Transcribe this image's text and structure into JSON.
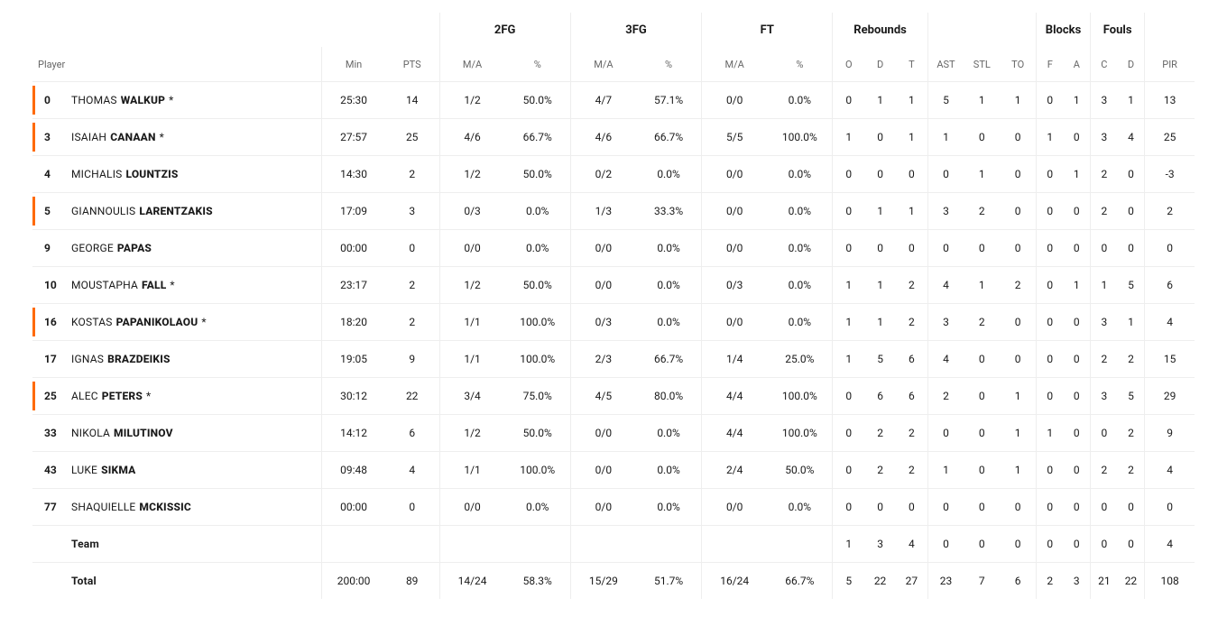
{
  "style": {
    "marker_color": "#ff6a00",
    "divider_color": "#eeeeee",
    "text_color": "#1a1a1a",
    "muted_color": "#666666",
    "background_color": "#ffffff",
    "font_family": "-apple-system, Segoe UI, Roboto, Helvetica Neue, Arial, sans-serif",
    "header_fontsize_pt": 10,
    "group_header_fontsize_pt": 10,
    "body_fontsize_pt": 9
  },
  "groups": {
    "g2fg": "2FG",
    "g3fg": "3FG",
    "gft": "FT",
    "grebounds": "Rebounds",
    "gblocks": "Blocks",
    "gfouls": "Fouls"
  },
  "headers": {
    "player": "Player",
    "min": "Min",
    "pts": "PTS",
    "ma": "M/A",
    "pct": "%",
    "reb_o": "O",
    "reb_d": "D",
    "reb_t": "T",
    "ast": "AST",
    "stl": "STL",
    "to": "TO",
    "blk_f": "F",
    "blk_a": "A",
    "foul_c": "C",
    "foul_d": "D",
    "pir": "PIR"
  },
  "rows": [
    {
      "marker": true,
      "num": "0",
      "first": "THOMAS",
      "last": "WALKUP",
      "star": "*",
      "min": "25:30",
      "pts": "14",
      "fg2_ma": "1/2",
      "fg2_pct": "50.0%",
      "fg3_ma": "4/7",
      "fg3_pct": "57.1%",
      "ft_ma": "0/0",
      "ft_pct": "0.0%",
      "ro": "0",
      "rd": "1",
      "rt": "1",
      "ast": "5",
      "stl": "1",
      "to": "1",
      "bf": "0",
      "ba": "1",
      "fc": "3",
      "fd": "1",
      "pir": "13"
    },
    {
      "marker": true,
      "num": "3",
      "first": "ISAIAH",
      "last": "CANAAN",
      "star": "*",
      "min": "27:57",
      "pts": "25",
      "fg2_ma": "4/6",
      "fg2_pct": "66.7%",
      "fg3_ma": "4/6",
      "fg3_pct": "66.7%",
      "ft_ma": "5/5",
      "ft_pct": "100.0%",
      "ro": "1",
      "rd": "0",
      "rt": "1",
      "ast": "1",
      "stl": "0",
      "to": "0",
      "bf": "1",
      "ba": "0",
      "fc": "3",
      "fd": "4",
      "pir": "25"
    },
    {
      "marker": false,
      "num": "4",
      "first": "MICHALIS",
      "last": "LOUNTZIS",
      "star": "",
      "min": "14:30",
      "pts": "2",
      "fg2_ma": "1/2",
      "fg2_pct": "50.0%",
      "fg3_ma": "0/2",
      "fg3_pct": "0.0%",
      "ft_ma": "0/0",
      "ft_pct": "0.0%",
      "ro": "0",
      "rd": "0",
      "rt": "0",
      "ast": "0",
      "stl": "1",
      "to": "0",
      "bf": "0",
      "ba": "1",
      "fc": "2",
      "fd": "0",
      "pir": "-3"
    },
    {
      "marker": true,
      "num": "5",
      "first": "GIANNOULIS",
      "last": "LARENTZAKIS",
      "star": "",
      "min": "17:09",
      "pts": "3",
      "fg2_ma": "0/3",
      "fg2_pct": "0.0%",
      "fg3_ma": "1/3",
      "fg3_pct": "33.3%",
      "ft_ma": "0/0",
      "ft_pct": "0.0%",
      "ro": "0",
      "rd": "1",
      "rt": "1",
      "ast": "3",
      "stl": "2",
      "to": "0",
      "bf": "0",
      "ba": "0",
      "fc": "2",
      "fd": "0",
      "pir": "2"
    },
    {
      "marker": false,
      "num": "9",
      "first": "GEORGE",
      "last": "PAPAS",
      "star": "",
      "min": "00:00",
      "pts": "0",
      "fg2_ma": "0/0",
      "fg2_pct": "0.0%",
      "fg3_ma": "0/0",
      "fg3_pct": "0.0%",
      "ft_ma": "0/0",
      "ft_pct": "0.0%",
      "ro": "0",
      "rd": "0",
      "rt": "0",
      "ast": "0",
      "stl": "0",
      "to": "0",
      "bf": "0",
      "ba": "0",
      "fc": "0",
      "fd": "0",
      "pir": "0"
    },
    {
      "marker": false,
      "num": "10",
      "first": "MOUSTAPHA",
      "last": "FALL",
      "star": "*",
      "min": "23:17",
      "pts": "2",
      "fg2_ma": "1/2",
      "fg2_pct": "50.0%",
      "fg3_ma": "0/0",
      "fg3_pct": "0.0%",
      "ft_ma": "0/3",
      "ft_pct": "0.0%",
      "ro": "1",
      "rd": "1",
      "rt": "2",
      "ast": "4",
      "stl": "1",
      "to": "2",
      "bf": "0",
      "ba": "1",
      "fc": "1",
      "fd": "5",
      "pir": "6"
    },
    {
      "marker": true,
      "num": "16",
      "first": "KOSTAS",
      "last": "PAPANIKOLAOU",
      "star": "*",
      "min": "18:20",
      "pts": "2",
      "fg2_ma": "1/1",
      "fg2_pct": "100.0%",
      "fg3_ma": "0/3",
      "fg3_pct": "0.0%",
      "ft_ma": "0/0",
      "ft_pct": "0.0%",
      "ro": "1",
      "rd": "1",
      "rt": "2",
      "ast": "3",
      "stl": "2",
      "to": "0",
      "bf": "0",
      "ba": "0",
      "fc": "3",
      "fd": "1",
      "pir": "4"
    },
    {
      "marker": false,
      "num": "17",
      "first": "IGNAS",
      "last": "BRAZDEIKIS",
      "star": "",
      "min": "19:05",
      "pts": "9",
      "fg2_ma": "1/1",
      "fg2_pct": "100.0%",
      "fg3_ma": "2/3",
      "fg3_pct": "66.7%",
      "ft_ma": "1/4",
      "ft_pct": "25.0%",
      "ro": "1",
      "rd": "5",
      "rt": "6",
      "ast": "4",
      "stl": "0",
      "to": "0",
      "bf": "0",
      "ba": "0",
      "fc": "2",
      "fd": "2",
      "pir": "15"
    },
    {
      "marker": true,
      "num": "25",
      "first": "ALEC",
      "last": "PETERS",
      "star": "*",
      "min": "30:12",
      "pts": "22",
      "fg2_ma": "3/4",
      "fg2_pct": "75.0%",
      "fg3_ma": "4/5",
      "fg3_pct": "80.0%",
      "ft_ma": "4/4",
      "ft_pct": "100.0%",
      "ro": "0",
      "rd": "6",
      "rt": "6",
      "ast": "2",
      "stl": "0",
      "to": "1",
      "bf": "0",
      "ba": "0",
      "fc": "3",
      "fd": "5",
      "pir": "29"
    },
    {
      "marker": false,
      "num": "33",
      "first": "NIKOLA",
      "last": "MILUTINOV",
      "star": "",
      "min": "14:12",
      "pts": "6",
      "fg2_ma": "1/2",
      "fg2_pct": "50.0%",
      "fg3_ma": "0/0",
      "fg3_pct": "0.0%",
      "ft_ma": "4/4",
      "ft_pct": "100.0%",
      "ro": "0",
      "rd": "2",
      "rt": "2",
      "ast": "0",
      "stl": "0",
      "to": "1",
      "bf": "1",
      "ba": "0",
      "fc": "0",
      "fd": "2",
      "pir": "9"
    },
    {
      "marker": false,
      "num": "43",
      "first": "LUKE",
      "last": "SIKMA",
      "star": "",
      "min": "09:48",
      "pts": "4",
      "fg2_ma": "1/1",
      "fg2_pct": "100.0%",
      "fg3_ma": "0/0",
      "fg3_pct": "0.0%",
      "ft_ma": "2/4",
      "ft_pct": "50.0%",
      "ro": "0",
      "rd": "2",
      "rt": "2",
      "ast": "1",
      "stl": "0",
      "to": "1",
      "bf": "0",
      "ba": "0",
      "fc": "2",
      "fd": "2",
      "pir": "4"
    },
    {
      "marker": false,
      "num": "77",
      "first": "SHAQUIELLE",
      "last": "MCKISSIC",
      "star": "",
      "min": "00:00",
      "pts": "0",
      "fg2_ma": "0/0",
      "fg2_pct": "0.0%",
      "fg3_ma": "0/0",
      "fg3_pct": "0.0%",
      "ft_ma": "0/0",
      "ft_pct": "0.0%",
      "ro": "0",
      "rd": "0",
      "rt": "0",
      "ast": "0",
      "stl": "0",
      "to": "0",
      "bf": "0",
      "ba": "0",
      "fc": "0",
      "fd": "0",
      "pir": "0"
    }
  ],
  "team_row": {
    "label": "Team",
    "ro": "1",
    "rd": "3",
    "rt": "4",
    "ast": "0",
    "stl": "0",
    "to": "0",
    "bf": "0",
    "ba": "0",
    "fc": "0",
    "fd": "0",
    "pir": "4"
  },
  "total_row": {
    "label": "Total",
    "min": "200:00",
    "pts": "89",
    "fg2_ma": "14/24",
    "fg2_pct": "58.3%",
    "fg3_ma": "15/29",
    "fg3_pct": "51.7%",
    "ft_ma": "16/24",
    "ft_pct": "66.7%",
    "ro": "5",
    "rd": "22",
    "rt": "27",
    "ast": "23",
    "stl": "7",
    "to": "6",
    "bf": "2",
    "ba": "3",
    "fc": "21",
    "fd": "22",
    "pir": "108"
  }
}
